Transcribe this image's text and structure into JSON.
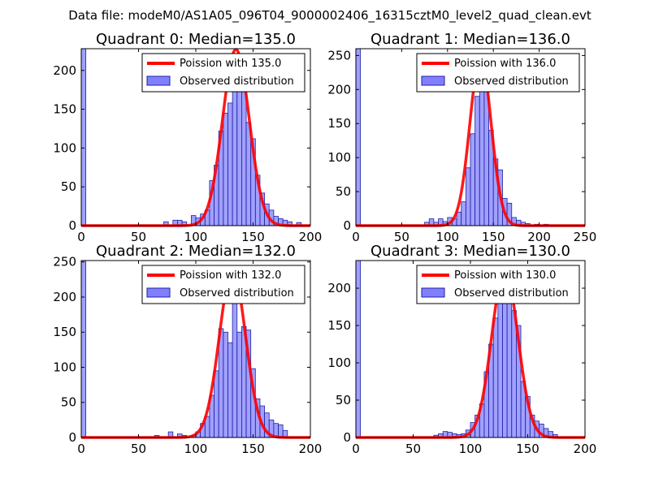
{
  "suptitle": "Data file: modeM0/AS1A05_096T04_9000002406_16315cztM0_level2_quad_clean.evt",
  "colors": {
    "bar_fill": "#8080ff",
    "bar_edge": "#2020a0",
    "curve": "#ff0000",
    "axes": "#000000"
  },
  "chart_data": [
    {
      "type": "bar",
      "title": "Quadrant 0: Median=135.0",
      "xlim": [
        0,
        200
      ],
      "ylim": [
        0,
        228
      ],
      "xticks": [
        0,
        50,
        100,
        150,
        200
      ],
      "yticks": [
        0,
        50,
        100,
        150,
        200
      ],
      "bin_width": 4,
      "bins": [
        {
          "x": 0,
          "y": 228
        },
        {
          "x": 72,
          "y": 5
        },
        {
          "x": 80,
          "y": 7
        },
        {
          "x": 84,
          "y": 7
        },
        {
          "x": 88,
          "y": 5
        },
        {
          "x": 96,
          "y": 13
        },
        {
          "x": 100,
          "y": 10
        },
        {
          "x": 104,
          "y": 15
        },
        {
          "x": 108,
          "y": 20
        },
        {
          "x": 112,
          "y": 58
        },
        {
          "x": 116,
          "y": 78
        },
        {
          "x": 120,
          "y": 122
        },
        {
          "x": 124,
          "y": 145
        },
        {
          "x": 128,
          "y": 158
        },
        {
          "x": 132,
          "y": 192
        },
        {
          "x": 136,
          "y": 218
        },
        {
          "x": 140,
          "y": 208
        },
        {
          "x": 144,
          "y": 133
        },
        {
          "x": 148,
          "y": 112
        },
        {
          "x": 152,
          "y": 65
        },
        {
          "x": 156,
          "y": 42
        },
        {
          "x": 160,
          "y": 28
        },
        {
          "x": 164,
          "y": 20
        },
        {
          "x": 168,
          "y": 12
        },
        {
          "x": 172,
          "y": 9
        },
        {
          "x": 176,
          "y": 7
        },
        {
          "x": 180,
          "y": 5
        },
        {
          "x": 188,
          "y": 4
        }
      ],
      "curve": {
        "mean": 135.0,
        "peak": 227,
        "label": "Poission with 135.0"
      },
      "legend": [
        "Poission with 135.0",
        "Observed distribution"
      ]
    },
    {
      "type": "bar",
      "title": "Quadrant 1: Median=136.0",
      "xlim": [
        0,
        250
      ],
      "ylim": [
        0,
        260
      ],
      "xticks": [
        0,
        50,
        100,
        150,
        200,
        250
      ],
      "yticks": [
        0,
        50,
        100,
        150,
        200,
        250
      ],
      "bin_width": 5,
      "bins": [
        {
          "x": 0,
          "y": 260
        },
        {
          "x": 75,
          "y": 5
        },
        {
          "x": 80,
          "y": 10
        },
        {
          "x": 85,
          "y": 5
        },
        {
          "x": 90,
          "y": 10
        },
        {
          "x": 95,
          "y": 6
        },
        {
          "x": 100,
          "y": 12
        },
        {
          "x": 105,
          "y": 10
        },
        {
          "x": 110,
          "y": 20
        },
        {
          "x": 115,
          "y": 35
        },
        {
          "x": 120,
          "y": 85
        },
        {
          "x": 125,
          "y": 135
        },
        {
          "x": 130,
          "y": 190
        },
        {
          "x": 135,
          "y": 233
        },
        {
          "x": 140,
          "y": 228
        },
        {
          "x": 145,
          "y": 140
        },
        {
          "x": 150,
          "y": 98
        },
        {
          "x": 155,
          "y": 82
        },
        {
          "x": 160,
          "y": 40
        },
        {
          "x": 165,
          "y": 33
        },
        {
          "x": 170,
          "y": 12
        },
        {
          "x": 175,
          "y": 8
        },
        {
          "x": 180,
          "y": 5
        },
        {
          "x": 185,
          "y": 3
        },
        {
          "x": 195,
          "y": 2
        },
        {
          "x": 205,
          "y": 2
        }
      ],
      "curve": {
        "mean": 136.0,
        "peak": 247,
        "label": "Poission with 136.0"
      },
      "legend": [
        "Poission with 136.0",
        "Observed distribution"
      ]
    },
    {
      "type": "bar",
      "title": "Quadrant 2: Median=132.0",
      "xlim": [
        0,
        200
      ],
      "ylim": [
        0,
        252
      ],
      "xticks": [
        0,
        50,
        100,
        150,
        200
      ],
      "yticks": [
        0,
        50,
        100,
        150,
        200,
        250
      ],
      "bin_width": 4,
      "bins": [
        {
          "x": 0,
          "y": 252
        },
        {
          "x": 64,
          "y": 3
        },
        {
          "x": 76,
          "y": 8
        },
        {
          "x": 84,
          "y": 5
        },
        {
          "x": 88,
          "y": 3
        },
        {
          "x": 96,
          "y": 3
        },
        {
          "x": 100,
          "y": 8
        },
        {
          "x": 104,
          "y": 20
        },
        {
          "x": 108,
          "y": 30
        },
        {
          "x": 112,
          "y": 60
        },
        {
          "x": 116,
          "y": 95
        },
        {
          "x": 120,
          "y": 155
        },
        {
          "x": 124,
          "y": 150
        },
        {
          "x": 128,
          "y": 135
        },
        {
          "x": 132,
          "y": 215
        },
        {
          "x": 136,
          "y": 150
        },
        {
          "x": 140,
          "y": 158
        },
        {
          "x": 144,
          "y": 153
        },
        {
          "x": 148,
          "y": 98
        },
        {
          "x": 152,
          "y": 55
        },
        {
          "x": 156,
          "y": 45
        },
        {
          "x": 160,
          "y": 35
        },
        {
          "x": 164,
          "y": 25
        },
        {
          "x": 168,
          "y": 20
        },
        {
          "x": 172,
          "y": 18
        },
        {
          "x": 176,
          "y": 10
        }
      ],
      "curve": {
        "mean": 132.0,
        "peak": 238,
        "label": "Poission with 132.0"
      },
      "legend": [
        "Poission with 132.0",
        "Observed distribution"
      ]
    },
    {
      "type": "bar",
      "title": "Quadrant 3: Median=130.0",
      "xlim": [
        0,
        200
      ],
      "ylim": [
        0,
        237
      ],
      "xticks": [
        0,
        50,
        100,
        150,
        200
      ],
      "yticks": [
        0,
        50,
        100,
        150,
        200
      ],
      "bin_width": 4,
      "bins": [
        {
          "x": 0,
          "y": 237
        },
        {
          "x": 68,
          "y": 3
        },
        {
          "x": 72,
          "y": 5
        },
        {
          "x": 76,
          "y": 8
        },
        {
          "x": 80,
          "y": 7
        },
        {
          "x": 84,
          "y": 5
        },
        {
          "x": 88,
          "y": 4
        },
        {
          "x": 92,
          "y": 5
        },
        {
          "x": 96,
          "y": 10
        },
        {
          "x": 100,
          "y": 20
        },
        {
          "x": 104,
          "y": 30
        },
        {
          "x": 108,
          "y": 45
        },
        {
          "x": 112,
          "y": 88
        },
        {
          "x": 116,
          "y": 125
        },
        {
          "x": 120,
          "y": 160
        },
        {
          "x": 124,
          "y": 190
        },
        {
          "x": 128,
          "y": 215
        },
        {
          "x": 132,
          "y": 195
        },
        {
          "x": 136,
          "y": 170
        },
        {
          "x": 140,
          "y": 150
        },
        {
          "x": 144,
          "y": 75
        },
        {
          "x": 148,
          "y": 55
        },
        {
          "x": 152,
          "y": 30
        },
        {
          "x": 156,
          "y": 22
        },
        {
          "x": 160,
          "y": 18
        },
        {
          "x": 164,
          "y": 12
        },
        {
          "x": 168,
          "y": 8
        },
        {
          "x": 172,
          "y": 4
        }
      ],
      "curve": {
        "mean": 130.0,
        "peak": 225,
        "label": "Poission with 130.0"
      },
      "legend": [
        "Poission with 130.0",
        "Observed distribution"
      ]
    }
  ]
}
